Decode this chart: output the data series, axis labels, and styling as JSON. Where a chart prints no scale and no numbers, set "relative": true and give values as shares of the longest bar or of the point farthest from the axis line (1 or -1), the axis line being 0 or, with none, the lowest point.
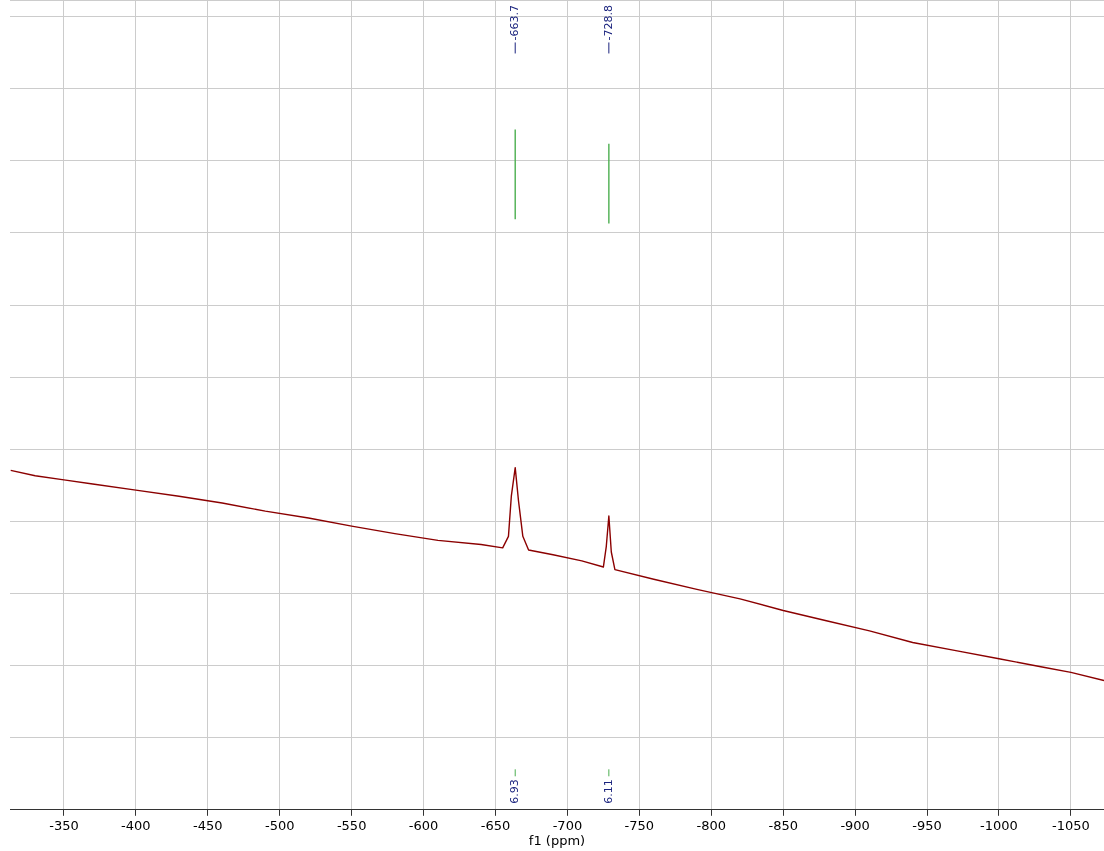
{
  "chart_data": {
    "type": "line",
    "xlabel": "f1 (ppm)",
    "relative": true,
    "grid": true,
    "legend": false,
    "xlim": [
      -312.5,
      -1073
    ],
    "xticks": [
      -350,
      -400,
      -450,
      -500,
      -550,
      -600,
      -650,
      -700,
      -750,
      -800,
      -850,
      -900,
      -950,
      -1000,
      -1050
    ],
    "series": [
      {
        "color": "#8b0000",
        "x": [
          -313,
          -330,
          -350,
          -370,
          -400,
          -430,
          -460,
          -490,
          -520,
          -550,
          -580,
          -610,
          -640,
          -655,
          -659,
          -661,
          -663.7,
          -666,
          -669,
          -673,
          -690,
          -710,
          -725,
          -727,
          -728.8,
          -730.5,
          -733,
          -760,
          -790,
          -820,
          -850,
          -880,
          -910,
          -940,
          -970,
          -1000,
          -1030,
          -1050,
          -1073
        ],
        "values": [
          0.499,
          0.491,
          0.485,
          0.479,
          0.47,
          0.461,
          0.451,
          0.439,
          0.429,
          0.417,
          0.406,
          0.396,
          0.39,
          0.385,
          0.402,
          0.461,
          0.503,
          0.454,
          0.402,
          0.382,
          0.375,
          0.366,
          0.357,
          0.387,
          0.432,
          0.379,
          0.353,
          0.339,
          0.324,
          0.31,
          0.293,
          0.278,
          0.263,
          0.246,
          0.234,
          0.222,
          0.21,
          0.202,
          0.19
        ]
      },
      {
        "color": "#4caf50",
        "x": [
          -663.7,
          -663.7
        ],
        "values": [
          0.868,
          1.0
        ]
      },
      {
        "color": "#4caf50",
        "x": [
          -728.8,
          -728.8
        ],
        "values": [
          0.862,
          0.979
        ]
      }
    ],
    "ref_lines": [
      {
        "axis": "x",
        "value": -663.7,
        "label": "-663.7",
        "color": "#1a237e"
      },
      {
        "axis": "x",
        "value": -728.8,
        "label": "-728.8",
        "color": "#1a237e"
      }
    ],
    "annotations": [
      {
        "text": "6.93",
        "x": -663.7
      },
      {
        "text": "6.11",
        "x": -728.8
      }
    ]
  }
}
